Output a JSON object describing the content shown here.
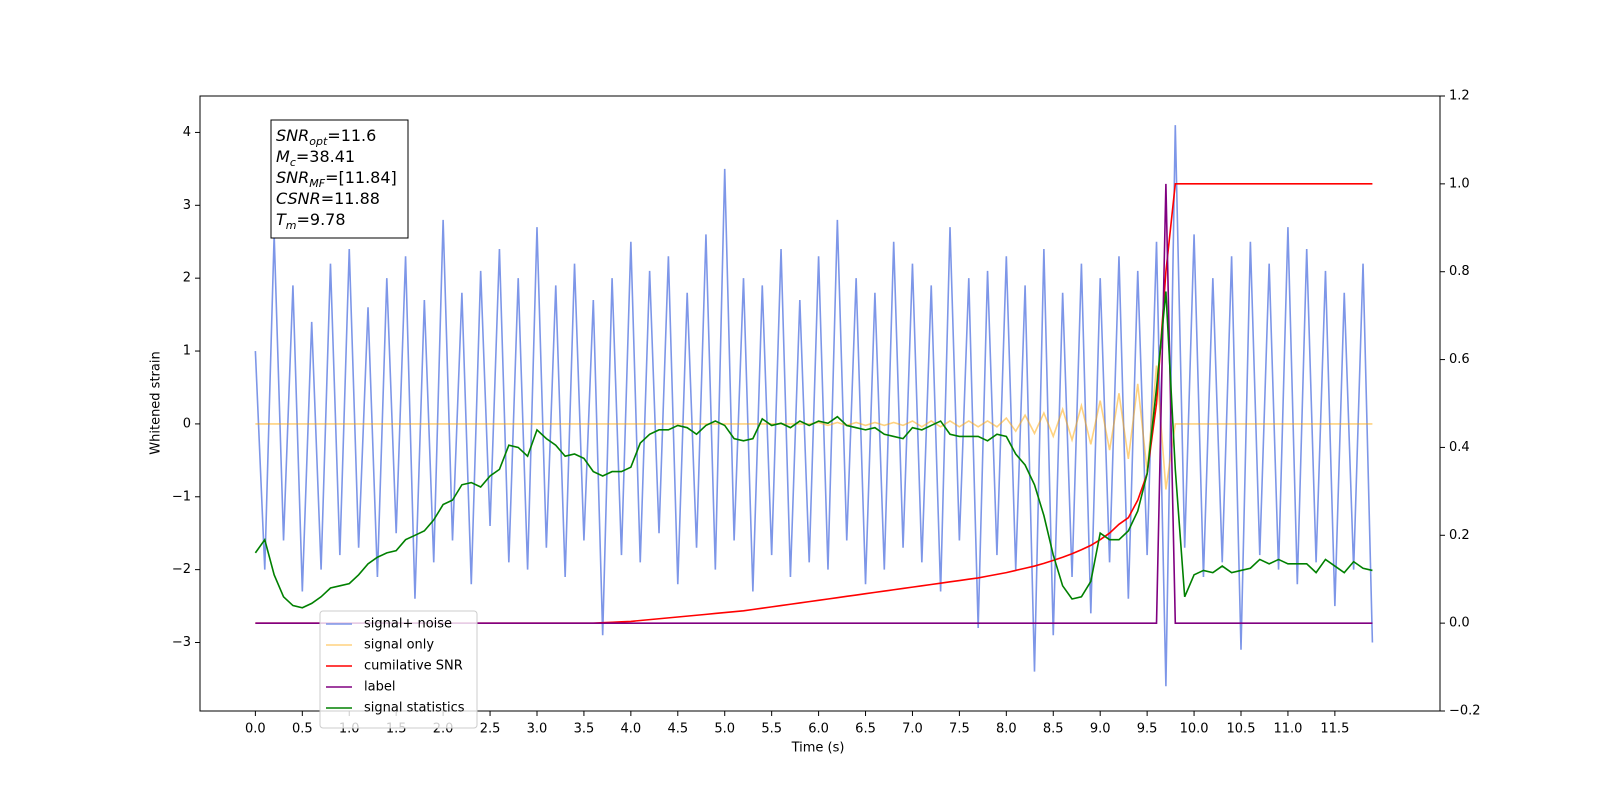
{
  "chart_data": {
    "type": "line",
    "xlabel": "Time (s)",
    "ylabel": "Whitened strain",
    "x": [
      0,
      0.1,
      0.2,
      0.3,
      0.4,
      0.5,
      0.6,
      0.7,
      0.8,
      0.9,
      1,
      1.1,
      1.2,
      1.3,
      1.4,
      1.5,
      1.6,
      1.7,
      1.8,
      1.9,
      2,
      2.1,
      2.2,
      2.3,
      2.4,
      2.5,
      2.6,
      2.7,
      2.8,
      2.9,
      3,
      3.1,
      3.2,
      3.3,
      3.4,
      3.5,
      3.6,
      3.7,
      3.8,
      3.9,
      4,
      4.1,
      4.2,
      4.3,
      4.4,
      4.5,
      4.6,
      4.7,
      4.8,
      4.9,
      5,
      5.1,
      5.2,
      5.3,
      5.4,
      5.5,
      5.6,
      5.7,
      5.8,
      5.9,
      6,
      6.1,
      6.2,
      6.3,
      6.4,
      6.5,
      6.6,
      6.7,
      6.8,
      6.9,
      7,
      7.1,
      7.2,
      7.3,
      7.4,
      7.5,
      7.6,
      7.7,
      7.8,
      7.9,
      8,
      8.1,
      8.2,
      8.3,
      8.4,
      8.5,
      8.6,
      8.7,
      8.8,
      8.9,
      9,
      9.1,
      9.2,
      9.3,
      9.4,
      9.5,
      9.6,
      9.7,
      9.8,
      9.9,
      10,
      10.1,
      10.2,
      10.3,
      10.4,
      10.5,
      10.6,
      10.7,
      10.8,
      10.9,
      11,
      11.1,
      11.2,
      11.3,
      11.4,
      11.5,
      11.6,
      11.7,
      11.8,
      11.9
    ],
    "series": [
      {
        "name": "signal+ noise",
        "color": "#6f8be6",
        "opacity": 0.9,
        "values": [
          1.0,
          -2.0,
          2.6,
          -1.6,
          1.9,
          -2.3,
          1.4,
          -2.0,
          2.2,
          -1.8,
          2.4,
          -1.7,
          1.6,
          -2.1,
          2.0,
          -1.5,
          2.3,
          -2.4,
          1.7,
          -1.9,
          2.8,
          -1.6,
          1.8,
          -2.2,
          2.1,
          -1.4,
          2.4,
          -1.9,
          2.0,
          -2.0,
          2.7,
          -1.7,
          1.9,
          -2.1,
          2.2,
          -1.6,
          1.7,
          -2.9,
          2.0,
          -1.8,
          2.5,
          -1.9,
          2.1,
          -1.5,
          2.3,
          -2.2,
          1.8,
          -1.7,
          2.6,
          -2.0,
          3.5,
          -1.6,
          2.0,
          -2.3,
          1.9,
          -1.8,
          2.4,
          -2.1,
          1.7,
          -1.9,
          2.3,
          -2.0,
          2.8,
          -1.6,
          2.0,
          -2.2,
          1.8,
          -2.0,
          2.5,
          -1.7,
          2.2,
          -1.9,
          1.9,
          -2.3,
          2.7,
          -1.6,
          2.0,
          -2.8,
          2.1,
          -1.8,
          2.3,
          -2.0,
          1.9,
          -3.4,
          2.4,
          -2.9,
          1.8,
          -2.1,
          2.2,
          -2.6,
          2.0,
          -1.9,
          2.3,
          -2.4,
          2.1,
          -1.8,
          2.5,
          -3.6,
          4.1,
          -1.7,
          2.6,
          -2.1,
          2.0,
          -1.9,
          2.3,
          -3.1,
          2.5,
          -1.8,
          2.2,
          -2.0,
          2.7,
          -2.2,
          2.4,
          -1.9,
          2.1,
          -2.5,
          1.8,
          -2.0,
          2.2,
          -3.0
        ]
      },
      {
        "name": "signal only",
        "color": "#ffa500",
        "opacity": 0.5,
        "values": [
          0,
          0,
          0,
          0,
          0,
          0,
          0,
          0,
          0,
          0,
          0,
          0,
          0,
          0,
          0,
          0,
          0,
          0,
          0,
          0,
          0,
          0,
          0,
          0,
          0,
          0,
          0,
          0,
          0,
          0,
          0,
          0,
          0,
          0,
          0,
          0,
          0,
          0,
          0,
          0,
          0,
          0,
          0,
          0,
          0,
          0,
          0,
          0,
          0,
          0,
          0,
          0,
          0,
          0,
          0,
          0,
          0,
          0,
          0,
          0,
          0.02,
          -0.02,
          0.02,
          -0.02,
          0.02,
          -0.02,
          0.02,
          -0.02,
          0.02,
          -0.02,
          0.04,
          -0.04,
          0.04,
          -0.04,
          0.04,
          -0.04,
          0.04,
          -0.04,
          0.04,
          -0.04,
          0.08,
          -0.1,
          0.12,
          -0.13,
          0.15,
          -0.17,
          0.2,
          -0.22,
          0.25,
          -0.28,
          0.32,
          -0.36,
          0.42,
          -0.48,
          0.55,
          -0.65,
          0.8,
          -0.9,
          0,
          0,
          0,
          0,
          0,
          0,
          0,
          0,
          0,
          0,
          0,
          0,
          0,
          0,
          0,
          0,
          0,
          0,
          0,
          0,
          0,
          0
        ]
      },
      {
        "name": "cumilative SNR",
        "color": "#ff0000",
        "opacity": 1,
        "axis": "y2",
        "values": [
          0,
          0,
          0,
          0,
          0,
          0,
          0,
          0,
          0,
          0,
          0,
          0,
          0,
          0,
          0,
          0,
          0,
          0,
          0,
          0,
          0,
          0,
          0,
          0,
          0,
          0,
          0,
          0,
          0,
          0,
          0,
          0,
          0,
          0,
          0,
          0,
          0,
          0.001,
          0.002,
          0.003,
          0.004,
          0.006,
          0.008,
          0.01,
          0.012,
          0.014,
          0.016,
          0.018,
          0.02,
          0.022,
          0.024,
          0.026,
          0.028,
          0.031,
          0.034,
          0.037,
          0.04,
          0.043,
          0.046,
          0.049,
          0.052,
          0.055,
          0.058,
          0.061,
          0.064,
          0.067,
          0.07,
          0.073,
          0.076,
          0.079,
          0.082,
          0.085,
          0.088,
          0.091,
          0.094,
          0.097,
          0.1,
          0.103,
          0.107,
          0.111,
          0.115,
          0.12,
          0.125,
          0.13,
          0.136,
          0.143,
          0.15,
          0.158,
          0.167,
          0.177,
          0.19,
          0.205,
          0.225,
          0.24,
          0.28,
          0.34,
          0.5,
          0.8,
          1,
          1,
          1,
          1,
          1,
          1,
          1,
          1,
          1,
          1,
          1,
          1,
          1,
          1,
          1,
          1,
          1,
          1,
          1,
          1,
          1,
          1
        ]
      },
      {
        "name": "label",
        "color": "#800080",
        "opacity": 1,
        "axis": "y2",
        "values": [
          0,
          0,
          0,
          0,
          0,
          0,
          0,
          0,
          0,
          0,
          0,
          0,
          0,
          0,
          0,
          0,
          0,
          0,
          0,
          0,
          0,
          0,
          0,
          0,
          0,
          0,
          0,
          0,
          0,
          0,
          0,
          0,
          0,
          0,
          0,
          0,
          0,
          0,
          0,
          0,
          0,
          0,
          0,
          0,
          0,
          0,
          0,
          0,
          0,
          0,
          0,
          0,
          0,
          0,
          0,
          0,
          0,
          0,
          0,
          0,
          0,
          0,
          0,
          0,
          0,
          0,
          0,
          0,
          0,
          0,
          0,
          0,
          0,
          0,
          0,
          0,
          0,
          0,
          0,
          0,
          0,
          0,
          0,
          0,
          0,
          0,
          0,
          0,
          0,
          0,
          0,
          0,
          0,
          0,
          0,
          0,
          0,
          1,
          0,
          0,
          0,
          0,
          0,
          0,
          0,
          0,
          0,
          0,
          0,
          0,
          0,
          0,
          0,
          0,
          0,
          0,
          0,
          0,
          0,
          0
        ]
      },
      {
        "name": "signal statistics",
        "color": "#008000",
        "opacity": 1,
        "axis": "y2",
        "values": [
          0.16,
          0.19,
          0.11,
          0.06,
          0.04,
          0.035,
          0.045,
          0.06,
          0.08,
          0.085,
          0.09,
          0.11,
          0.135,
          0.15,
          0.16,
          0.165,
          0.19,
          0.2,
          0.21,
          0.235,
          0.27,
          0.28,
          0.315,
          0.32,
          0.31,
          0.335,
          0.35,
          0.405,
          0.4,
          0.38,
          0.44,
          0.42,
          0.405,
          0.38,
          0.385,
          0.375,
          0.345,
          0.335,
          0.345,
          0.345,
          0.355,
          0.41,
          0.43,
          0.44,
          0.44,
          0.45,
          0.445,
          0.43,
          0.45,
          0.46,
          0.45,
          0.42,
          0.415,
          0.42,
          0.465,
          0.45,
          0.455,
          0.445,
          0.46,
          0.45,
          0.46,
          0.455,
          0.47,
          0.45,
          0.445,
          0.44,
          0.445,
          0.43,
          0.425,
          0.42,
          0.445,
          0.44,
          0.45,
          0.46,
          0.43,
          0.425,
          0.425,
          0.425,
          0.415,
          0.43,
          0.425,
          0.385,
          0.36,
          0.315,
          0.245,
          0.155,
          0.085,
          0.055,
          0.06,
          0.095,
          0.205,
          0.19,
          0.19,
          0.21,
          0.255,
          0.34,
          0.535,
          0.755,
          0.35,
          0.06,
          0.11,
          0.12,
          0.115,
          0.13,
          0.115,
          0.12,
          0.125,
          0.145,
          0.135,
          0.145,
          0.135,
          0.135,
          0.135,
          0.115,
          0.145,
          0.13,
          0.115,
          0.14,
          0.125,
          0.12
        ]
      }
    ],
    "xlim": [
      -0.59,
      12.62
    ],
    "xticks": [
      {
        "value": 0,
        "label": "0.0"
      },
      0.5,
      {
        "value": 1,
        "label": "1.0"
      },
      1.5,
      {
        "value": 2,
        "label": "2.0"
      },
      2.5,
      {
        "value": 3,
        "label": "3.0"
      },
      3.5,
      {
        "value": 4,
        "label": "4.0"
      },
      4.5,
      {
        "value": 5,
        "label": "5.0"
      },
      5.5,
      {
        "value": 6,
        "label": "6.0"
      },
      6.5,
      {
        "value": 7,
        "label": "7.0"
      },
      7.5,
      {
        "value": 8,
        "label": "8.0"
      },
      8.5,
      {
        "value": 9,
        "label": "9.0"
      },
      9.5,
      {
        "value": 10,
        "label": "10.0"
      },
      10.5,
      {
        "value": 11,
        "label": "11.0"
      },
      11.5
    ],
    "ylim": [
      -3.94,
      4.5
    ],
    "yticks": [
      {
        "value": -3,
        "label": "−3"
      },
      {
        "value": -2,
        "label": "−2"
      },
      {
        "value": -1,
        "label": "−1"
      },
      0,
      1,
      2,
      3,
      4
    ],
    "y2lim": [
      -0.2,
      1.2
    ],
    "y2ticks": [
      {
        "value": -0.2,
        "label": "−0.2"
      },
      {
        "value": 0,
        "label": "0.0"
      },
      0.2,
      0.4,
      0.6,
      0.8,
      {
        "value": 1,
        "label": "1.0"
      },
      1.2
    ],
    "legend": "lower left",
    "annotations": [
      {
        "label": "SNR",
        "sub": "opt",
        "text": "=11.6"
      },
      {
        "label": "M",
        "sub": "c",
        "text": "=38.41"
      },
      {
        "label": "SNR",
        "sub": "MF",
        "text": "=[11.84]"
      },
      {
        "label": "CSNR",
        "sub": "",
        "text": "=11.88"
      },
      {
        "label": "T",
        "sub": "m",
        "text": "=9.78"
      }
    ]
  }
}
